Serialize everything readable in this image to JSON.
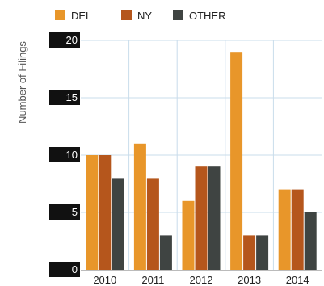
{
  "chart_data": {
    "type": "bar",
    "ylabel": "Number of Filings",
    "categories": [
      "2010",
      "2011",
      "2012",
      "2013",
      "2014"
    ],
    "series": [
      {
        "name": "DEL",
        "values": [
          10,
          11,
          6,
          19,
          7
        ]
      },
      {
        "name": "NY",
        "values": [
          10,
          8,
          9,
          3,
          7
        ]
      },
      {
        "name": "OTHER",
        "values": [
          8,
          3,
          9,
          3,
          5
        ]
      }
    ],
    "ylim": [
      0,
      20
    ],
    "yticks": [
      0,
      5,
      10,
      15,
      20
    ],
    "grid": true,
    "legend_position": "top-left",
    "colors": {
      "DEL": "#e8962a",
      "NY": "#b5561c",
      "OTHER": "#3f4442"
    },
    "tick_label_background": "#111111",
    "grid_color": "#c9dceb",
    "baseline_color": "#bbbbbb"
  }
}
